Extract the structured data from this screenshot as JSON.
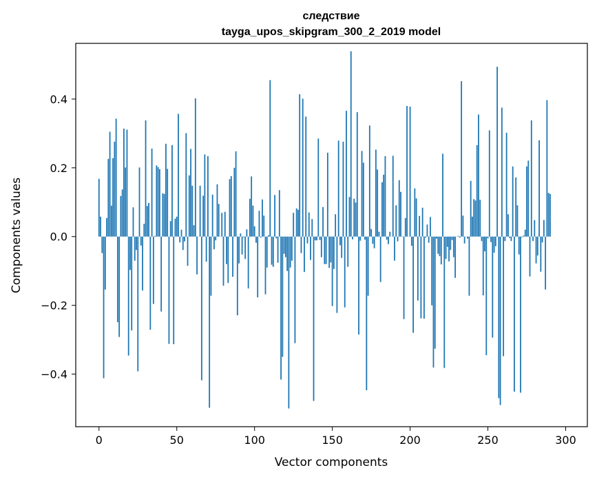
{
  "chart_data": {
    "type": "bar",
    "title": "следствие",
    "subtitle": "tayga_upos_skipgram_300_2_2019 model",
    "xlabel": "Vector components",
    "ylabel": "Components values",
    "xlim": [
      -14.95,
      313.95
    ],
    "ylim": [
      -0.553,
      0.562
    ],
    "xticks": [
      0,
      50,
      100,
      150,
      200,
      250,
      300
    ],
    "yticks": [
      -0.4,
      -0.2,
      0.0,
      0.2,
      0.4
    ],
    "ytick_labels": [
      "−0.4",
      "−0.2",
      "0.0",
      "0.2",
      "0.4"
    ],
    "bar_color": "#1f77b4",
    "grid": false,
    "values": [
      0.168,
      0.058,
      -0.048,
      -0.412,
      -0.154,
      0.054,
      0.226,
      0.305,
      0.09,
      0.228,
      0.276,
      0.343,
      -0.249,
      -0.292,
      0.118,
      0.137,
      0.314,
      0.201,
      0.311,
      -0.346,
      -0.097,
      -0.273,
      0.085,
      -0.07,
      -0.039,
      -0.392,
      0.201,
      -0.026,
      -0.157,
      0.037,
      0.338,
      0.089,
      0.098,
      -0.271,
      0.256,
      -0.196,
      0.002,
      0.207,
      0.202,
      0.196,
      -0.218,
      0.126,
      0.124,
      0.27,
      0.197,
      -0.312,
      0.045,
      0.266,
      -0.313,
      0.052,
      0.058,
      0.357,
      -0.017,
      0.02,
      -0.039,
      -0.014,
      0.301,
      -0.085,
      0.178,
      0.255,
      0.148,
      0.033,
      0.402,
      -0.11,
      0.0,
      0.148,
      -0.418,
      0.119,
      0.239,
      -0.073,
      0.234,
      -0.498,
      -0.172,
      0.122,
      -0.037,
      -0.011,
      0.152,
      0.095,
      0.0,
      0.069,
      -0.143,
      0.072,
      -0.08,
      -0.135,
      0.167,
      0.176,
      -0.117,
      0.2,
      0.248,
      -0.229,
      -0.078,
      0.009,
      -0.052,
      -0.002,
      -0.065,
      0.021,
      -0.151,
      0.11,
      0.175,
      0.09,
      0.03,
      -0.018,
      -0.177,
      0.075,
      -0.003,
      0.108,
      0.061,
      -0.168,
      -0.09,
      0.004,
      0.455,
      -0.082,
      -0.088,
      0.121,
      -0.005,
      -0.076,
      0.135,
      -0.416,
      -0.35,
      -0.05,
      -0.06,
      -0.1,
      -0.5,
      -0.09,
      -0.07,
      0.069,
      -0.31,
      0.082,
      0.078,
      0.414,
      -0.048,
      0.401,
      -0.103,
      0.349,
      -0.02,
      0.07,
      -0.068,
      0.051,
      -0.478,
      -0.011,
      -0.011,
      0.285,
      -0.01,
      -0.06,
      0.086,
      -0.08,
      -0.08,
      0.244,
      -0.091,
      -0.075,
      -0.202,
      -0.094,
      0.065,
      -0.222,
      0.279,
      -0.025,
      -0.062,
      0.276,
      -0.206,
      0.366,
      -0.088,
      0.115,
      0.539,
      -0.008,
      0.11,
      0.099,
      0.362,
      -0.285,
      -0.012,
      0.249,
      0.215,
      -0.009,
      -0.447,
      -0.172,
      0.323,
      0.022,
      -0.021,
      -0.034,
      0.253,
      0.195,
      0.014,
      -0.132,
      0.158,
      0.18,
      0.234,
      -0.009,
      -0.022,
      0.014,
      0.0,
      0.235,
      -0.07,
      0.091,
      -0.014,
      0.164,
      0.13,
      0.001,
      -0.24,
      0.054,
      0.38,
      0.0,
      0.378,
      -0.027,
      -0.28,
      0.14,
      0.111,
      -0.186,
      0.06,
      -0.238,
      0.084,
      -0.239,
      -0.003,
      0.035,
      -0.018,
      0.057,
      -0.2,
      -0.381,
      -0.326,
      -0.006,
      -0.05,
      -0.057,
      -0.081,
      0.241,
      -0.382,
      -0.065,
      -0.03,
      -0.072,
      -0.039,
      -0.01,
      -0.06,
      -0.12,
      0.0,
      0.002,
      -0.003,
      0.452,
      0.061,
      -0.02,
      0.0,
      -0.006,
      -0.172,
      0.162,
      0.058,
      0.109,
      0.105,
      0.266,
      0.355,
      0.107,
      -0.013,
      -0.171,
      -0.043,
      -0.345,
      -0.005,
      0.309,
      -0.016,
      -0.294,
      -0.047,
      -0.028,
      0.494,
      -0.47,
      -0.49,
      0.375,
      -0.348,
      -0.013,
      0.302,
      0.065,
      -0.004,
      -0.013,
      0.204,
      -0.451,
      0.172,
      0.091,
      -0.052,
      -0.454,
      -0.002,
      0.003,
      0.02,
      0.204,
      0.221,
      -0.116,
      0.338,
      -0.013,
      0.048,
      -0.078,
      -0.055,
      0.28,
      -0.102,
      -0.017,
      0.048,
      -0.154,
      0.397,
      0.127,
      0.124
    ]
  }
}
